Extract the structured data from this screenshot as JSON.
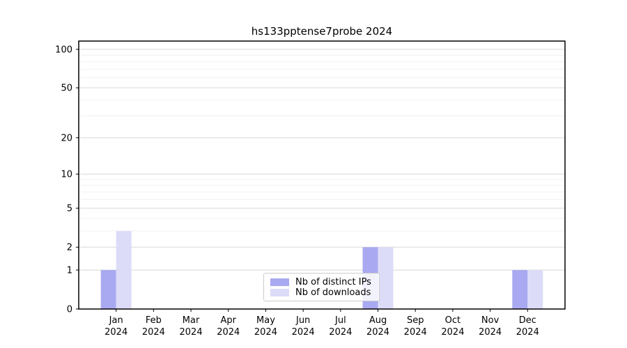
{
  "chart_data": {
    "type": "bar",
    "title": "hs133pptense7probe 2024",
    "categories": [
      "Jan",
      "Feb",
      "Mar",
      "Apr",
      "May",
      "Jun",
      "Jul",
      "Aug",
      "Sep",
      "Oct",
      "Nov",
      "Dec"
    ],
    "category_year": "2024",
    "series": [
      {
        "name": "Nb of distinct IPs",
        "color": "#a9a9f1",
        "values": [
          1,
          0,
          0,
          0,
          0,
          0,
          0,
          2,
          0,
          0,
          0,
          1
        ]
      },
      {
        "name": "Nb of downloads",
        "color": "#dcdcf8",
        "values": [
          3,
          0,
          0,
          0,
          0,
          0,
          0,
          2,
          0,
          0,
          0,
          1
        ]
      }
    ],
    "yscale": "log1p",
    "ylim": [
      0,
      116
    ],
    "yticks_major": [
      0,
      1,
      2,
      5,
      10,
      20,
      50,
      100
    ],
    "yticks_minor": [
      3,
      4,
      6,
      7,
      8,
      9,
      30,
      40,
      60,
      70,
      80,
      90
    ],
    "xlabel": "",
    "ylabel": "",
    "grid": "horizontal",
    "legend_position": "lower center"
  },
  "colors": {
    "axis": "#000000",
    "major_grid": "#d6d6d6",
    "minor_grid": "#f0f0f0",
    "background": "#ffffff",
    "tick_label": "#000000"
  }
}
